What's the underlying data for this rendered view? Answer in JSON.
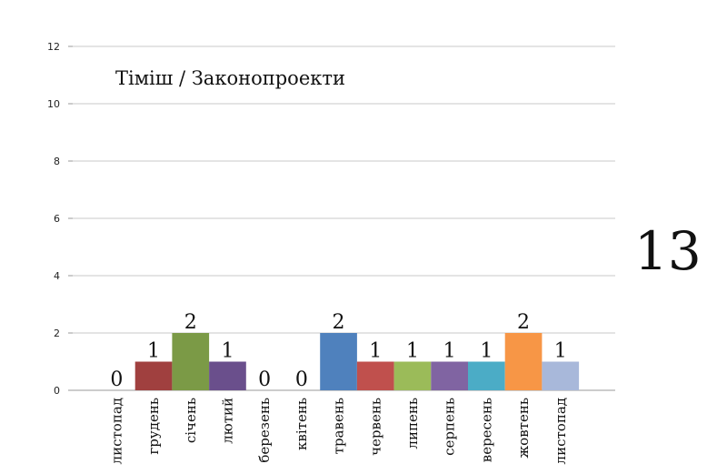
{
  "chart_data": {
    "type": "bar",
    "title": "Тіміш / Законопроекти",
    "total": "13",
    "categories": [
      "листопад",
      "грудень",
      "січень",
      "лютий",
      "березень",
      "квітень",
      "травень",
      "червень",
      "липень",
      "серпень",
      "вересень",
      "жовтень",
      "листопад"
    ],
    "values": [
      0,
      1,
      2,
      1,
      0,
      0,
      2,
      1,
      1,
      1,
      1,
      2,
      1
    ],
    "colors": [
      "#4f81bd",
      "#a0403f",
      "#7b9a46",
      "#6a4f8c",
      "#3a9ab5",
      "#e8913a",
      "#4f81bd",
      "#c0504d",
      "#9bbb59",
      "#8064a2",
      "#4bacc6",
      "#f79646",
      "#a8b8da"
    ],
    "yticks": [
      0,
      2,
      4,
      6,
      8,
      10,
      12
    ],
    "ylim": [
      0,
      12
    ],
    "grid": true,
    "xlabel": "",
    "ylabel": ""
  }
}
